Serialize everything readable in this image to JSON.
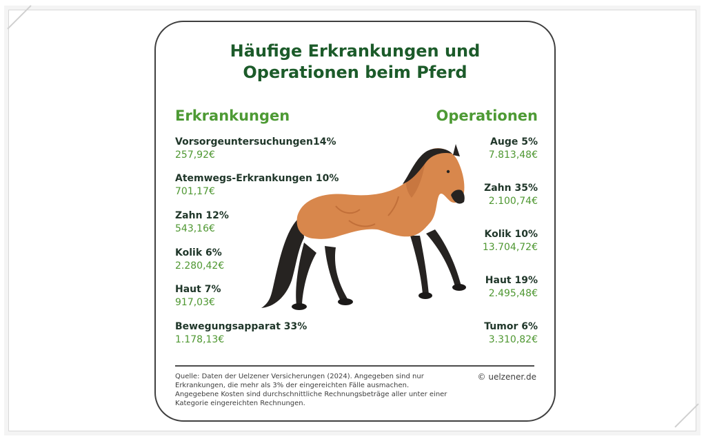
{
  "title": {
    "line1": "Häufige Erkrankungen und",
    "line2": "Operationen beim Pferd"
  },
  "left": {
    "heading": "Erkrankungen",
    "items": [
      {
        "label": "Vorsorgeuntersuchungen14%",
        "value": "257,92€"
      },
      {
        "label": "Atemwegs-Erkrankungen 10%",
        "value": "701,17€"
      },
      {
        "label": "Zahn 12%",
        "value": "543,16€"
      },
      {
        "label": "Kolik 6%",
        "value": "2.280,42€"
      },
      {
        "label": "Haut 7%",
        "value": "917,03€"
      },
      {
        "label": "Bewegungsapparat 33%",
        "value": "1.178,13€"
      }
    ]
  },
  "right": {
    "heading": "Operationen",
    "items": [
      {
        "label": "Auge 5%",
        "value": "7.813,48€"
      },
      {
        "label": "Zahn 35%",
        "value": "2.100,74€"
      },
      {
        "label": "Kolik 10%",
        "value": "13.704,72€"
      },
      {
        "label": "Haut 19%",
        "value": "2.495,48€"
      },
      {
        "label": "Tumor 6%",
        "value": "3.310,82€"
      }
    ]
  },
  "footer": {
    "source": "Quelle: Daten der Uelzener Versicherungen (2024). Angegeben sind nur Erkrankungen, die mehr als 3% der eingereichten Fälle ausmachen. Angegebene Kosten sind durchschnittliche Rechnungsbeträge aller unter einer Kategorie eingereichten Rechnungen.",
    "copyright": "© uelzener.de"
  },
  "colors": {
    "title": "#1c5b2a",
    "accent": "#4d9a34",
    "horse_body": "#d8874c",
    "horse_dark": "#272321"
  },
  "icons": {
    "illustration": "horse-icon"
  }
}
